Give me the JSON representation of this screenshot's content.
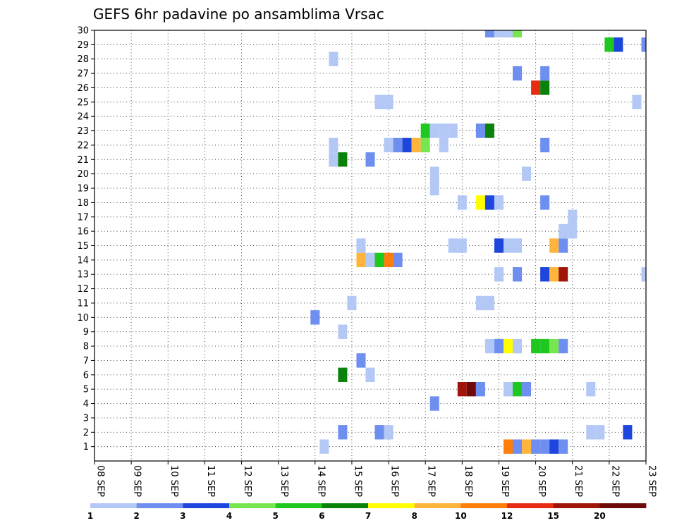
{
  "chart_data": {
    "type": "heatmap",
    "title": "GEFS 6hr padavine po ansamblima Vrsac",
    "xlabel": "",
    "ylabel": "",
    "x_tick_labels": [
      "08 SEP",
      "09 SEP",
      "10 SEP",
      "11 SEP",
      "12 SEP",
      "13 SEP",
      "14 SEP",
      "15 SEP",
      "16 SEP",
      "17 SEP",
      "18 SEP",
      "19 SEP",
      "20 SEP",
      "21 SEP",
      "22 SEP",
      "23 SEP"
    ],
    "y_tick_labels": [
      "1",
      "2",
      "3",
      "4",
      "5",
      "6",
      "7",
      "8",
      "9",
      "10",
      "11",
      "12",
      "13",
      "14",
      "15",
      "16",
      "17",
      "18",
      "19",
      "20",
      "21",
      "22",
      "23",
      "24",
      "25",
      "26",
      "27",
      "28",
      "29",
      "30"
    ],
    "x_unit": "6-hour step from 08 SEP 00UTC",
    "xlim": [
      0,
      60
    ],
    "ylim": [
      0,
      30
    ],
    "grid": true,
    "colorbar": {
      "bins": [
        {
          "min": 1,
          "color": "#b4c8f5"
        },
        {
          "min": 2,
          "color": "#6e8ff0"
        },
        {
          "min": 3,
          "color": "#1e46dc"
        },
        {
          "min": 4,
          "color": "#78e650"
        },
        {
          "min": 5,
          "color": "#1ec81e"
        },
        {
          "min": 6,
          "color": "#0a820a"
        },
        {
          "min": 7,
          "color": "#ffff00"
        },
        {
          "min": 8,
          "color": "#ffb43c"
        },
        {
          "min": 10,
          "color": "#ff7d0a"
        },
        {
          "min": 12,
          "color": "#e62d14"
        },
        {
          "min": 15,
          "color": "#a0140a"
        },
        {
          "min": 20,
          "color": "#6e0a0a"
        }
      ],
      "labels": [
        "1",
        "2",
        "3",
        "4",
        "5",
        "6",
        "7",
        "8",
        "10",
        "12",
        "15",
        "20"
      ]
    },
    "cells": [
      {
        "m": 1,
        "t": 25,
        "v": 1.5
      },
      {
        "m": 1,
        "t": 45,
        "v": 10.5
      },
      {
        "m": 1,
        "t": 46,
        "v": 2.5
      },
      {
        "m": 1,
        "t": 47,
        "v": 8.5
      },
      {
        "m": 1,
        "t": 48,
        "v": 2.5
      },
      {
        "m": 1,
        "t": 49,
        "v": 2.5
      },
      {
        "m": 1,
        "t": 50,
        "v": 3.5
      },
      {
        "m": 1,
        "t": 51,
        "v": 2.5
      },
      {
        "m": 2,
        "t": 27,
        "v": 2.5
      },
      {
        "m": 2,
        "t": 31,
        "v": 2.5
      },
      {
        "m": 2,
        "t": 32,
        "v": 1.5
      },
      {
        "m": 2,
        "t": 54,
        "v": 1.5
      },
      {
        "m": 2,
        "t": 55,
        "v": 1.5
      },
      {
        "m": 2,
        "t": 58,
        "v": 3.5
      },
      {
        "m": 4,
        "t": 37,
        "v": 2.5
      },
      {
        "m": 5,
        "t": 40,
        "v": 17
      },
      {
        "m": 5,
        "t": 41,
        "v": 25
      },
      {
        "m": 5,
        "t": 42,
        "v": 2.5
      },
      {
        "m": 5,
        "t": 45,
        "v": 1.5
      },
      {
        "m": 5,
        "t": 46,
        "v": 5.5
      },
      {
        "m": 5,
        "t": 47,
        "v": 2.5
      },
      {
        "m": 5,
        "t": 54,
        "v": 1.5
      },
      {
        "m": 6,
        "t": 27,
        "v": 6.5
      },
      {
        "m": 6,
        "t": 30,
        "v": 1.5
      },
      {
        "m": 7,
        "t": 29,
        "v": 2.5
      },
      {
        "m": 8,
        "t": 43,
        "v": 1.5
      },
      {
        "m": 8,
        "t": 44,
        "v": 2.5
      },
      {
        "m": 8,
        "t": 45,
        "v": 7.5
      },
      {
        "m": 8,
        "t": 46,
        "v": 1.5
      },
      {
        "m": 8,
        "t": 48,
        "v": 5.5
      },
      {
        "m": 8,
        "t": 49,
        "v": 5.5
      },
      {
        "m": 8,
        "t": 50,
        "v": 4.5
      },
      {
        "m": 8,
        "t": 51,
        "v": 2.5
      },
      {
        "m": 9,
        "t": 27,
        "v": 1.5
      },
      {
        "m": 10,
        "t": 24,
        "v": 2.5
      },
      {
        "m": 11,
        "t": 28,
        "v": 1.5
      },
      {
        "m": 11,
        "t": 42,
        "v": 1.5
      },
      {
        "m": 11,
        "t": 43,
        "v": 1.5
      },
      {
        "m": 13,
        "t": 44,
        "v": 1.5
      },
      {
        "m": 13,
        "t": 46,
        "v": 2.5
      },
      {
        "m": 13,
        "t": 49,
        "v": 3.5
      },
      {
        "m": 13,
        "t": 50,
        "v": 9
      },
      {
        "m": 13,
        "t": 51,
        "v": 17
      },
      {
        "m": 13,
        "t": 60,
        "v": 1.5
      },
      {
        "m": 14,
        "t": 29,
        "v": 9
      },
      {
        "m": 14,
        "t": 30,
        "v": 1.5
      },
      {
        "m": 14,
        "t": 31,
        "v": 5.5
      },
      {
        "m": 14,
        "t": 32,
        "v": 11
      },
      {
        "m": 14,
        "t": 33,
        "v": 2.5
      },
      {
        "m": 15,
        "t": 29,
        "v": 1.5
      },
      {
        "m": 15,
        "t": 39,
        "v": 1.5
      },
      {
        "m": 15,
        "t": 40,
        "v": 1.5
      },
      {
        "m": 15,
        "t": 44,
        "v": 3.5
      },
      {
        "m": 15,
        "t": 45,
        "v": 1.5
      },
      {
        "m": 15,
        "t": 46,
        "v": 1.5
      },
      {
        "m": 15,
        "t": 50,
        "v": 9
      },
      {
        "m": 15,
        "t": 51,
        "v": 2.5
      },
      {
        "m": 16,
        "t": 51,
        "v": 1.5
      },
      {
        "m": 16,
        "t": 52,
        "v": 1.5
      },
      {
        "m": 17,
        "t": 52,
        "v": 1.5
      },
      {
        "m": 18,
        "t": 40,
        "v": 1.5
      },
      {
        "m": 18,
        "t": 42,
        "v": 7.5
      },
      {
        "m": 18,
        "t": 43,
        "v": 3.5
      },
      {
        "m": 18,
        "t": 44,
        "v": 1.5
      },
      {
        "m": 18,
        "t": 49,
        "v": 2.5
      },
      {
        "m": 19,
        "t": 37,
        "v": 1.5
      },
      {
        "m": 20,
        "t": 37,
        "v": 1.5
      },
      {
        "m": 20,
        "t": 47,
        "v": 1.5
      },
      {
        "m": 21,
        "t": 26,
        "v": 1.5
      },
      {
        "m": 21,
        "t": 27,
        "v": 6.5
      },
      {
        "m": 21,
        "t": 30,
        "v": 2.5
      },
      {
        "m": 22,
        "t": 26,
        "v": 1.5
      },
      {
        "m": 22,
        "t": 32,
        "v": 1.5
      },
      {
        "m": 22,
        "t": 33,
        "v": 2.5
      },
      {
        "m": 22,
        "t": 34,
        "v": 3.5
      },
      {
        "m": 22,
        "t": 35,
        "v": 9
      },
      {
        "m": 22,
        "t": 36,
        "v": 4.5
      },
      {
        "m": 22,
        "t": 38,
        "v": 1.5
      },
      {
        "m": 22,
        "t": 49,
        "v": 2.5
      },
      {
        "m": 23,
        "t": 36,
        "v": 5.5
      },
      {
        "m": 23,
        "t": 37,
        "v": 1.5
      },
      {
        "m": 23,
        "t": 38,
        "v": 1.5
      },
      {
        "m": 23,
        "t": 39,
        "v": 1.5
      },
      {
        "m": 23,
        "t": 42,
        "v": 2.5
      },
      {
        "m": 23,
        "t": 43,
        "v": 6.5
      },
      {
        "m": 25,
        "t": 31,
        "v": 1.5
      },
      {
        "m": 25,
        "t": 32,
        "v": 1.5
      },
      {
        "m": 25,
        "t": 59,
        "v": 1.5
      },
      {
        "m": 26,
        "t": 48,
        "v": 13
      },
      {
        "m": 26,
        "t": 49,
        "v": 6.5
      },
      {
        "m": 27,
        "t": 46,
        "v": 2.5
      },
      {
        "m": 27,
        "t": 49,
        "v": 2.5
      },
      {
        "m": 28,
        "t": 26,
        "v": 1.5
      },
      {
        "m": 29,
        "t": 56,
        "v": 5.5
      },
      {
        "m": 29,
        "t": 57,
        "v": 3.5
      },
      {
        "m": 29,
        "t": 60,
        "v": 2.5
      },
      {
        "m": 30,
        "t": 43,
        "v": 2.5
      },
      {
        "m": 30,
        "t": 44,
        "v": 1.5
      },
      {
        "m": 30,
        "t": 45,
        "v": 1.5
      },
      {
        "m": 30,
        "t": 46,
        "v": 4.5
      }
    ]
  }
}
